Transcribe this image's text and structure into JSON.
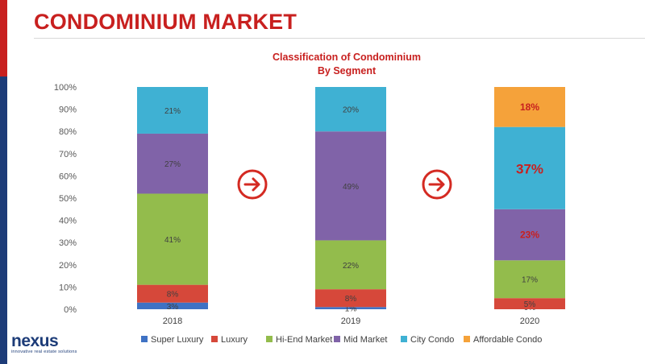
{
  "page": {
    "title": "CONDOMINIUM MARKET",
    "logo_text": "nexus",
    "logo_tagline": "innovative real estate solutions"
  },
  "chart_data": {
    "type": "bar",
    "stacked": true,
    "title": "Classification of Condominium",
    "subtitle": "By Segment",
    "categories": [
      "2018",
      "2019",
      "2020"
    ],
    "ylim": [
      0,
      100
    ],
    "yticks": [
      "0%",
      "10%",
      "20%",
      "30%",
      "40%",
      "50%",
      "60%",
      "70%",
      "80%",
      "90%",
      "100%"
    ],
    "series": [
      {
        "name": "Super Luxury",
        "color": "#3f72c4",
        "values": [
          3,
          1,
          0
        ],
        "labels": [
          "3%",
          "1%",
          "0%"
        ]
      },
      {
        "name": "Luxury",
        "color": "#d6483a",
        "values": [
          8,
          8,
          5
        ],
        "labels": [
          "8%",
          "8%",
          "5%"
        ]
      },
      {
        "name": "Hi-End Market",
        "color": "#93bc4c",
        "values": [
          41,
          22,
          17
        ],
        "labels": [
          "41%",
          "22%",
          "17%"
        ]
      },
      {
        "name": "Mid Market",
        "color": "#8063a8",
        "values": [
          27,
          49,
          23
        ],
        "labels": [
          "27%",
          "49%",
          "23%"
        ]
      },
      {
        "name": "City Condo",
        "color": "#3fb1d3",
        "values": [
          21,
          20,
          37
        ],
        "labels": [
          "21%",
          "20%",
          "37%"
        ]
      },
      {
        "name": "Affordable Condo",
        "color": "#f5a23a",
        "values": [
          0,
          0,
          18
        ],
        "labels": [
          "",
          "",
          "18%"
        ]
      }
    ],
    "highlight_labels_2020": [
      "18%",
      "37%",
      "23%"
    ],
    "arrow_color": "#d42a22",
    "grid": false,
    "legend_position": "bottom"
  }
}
